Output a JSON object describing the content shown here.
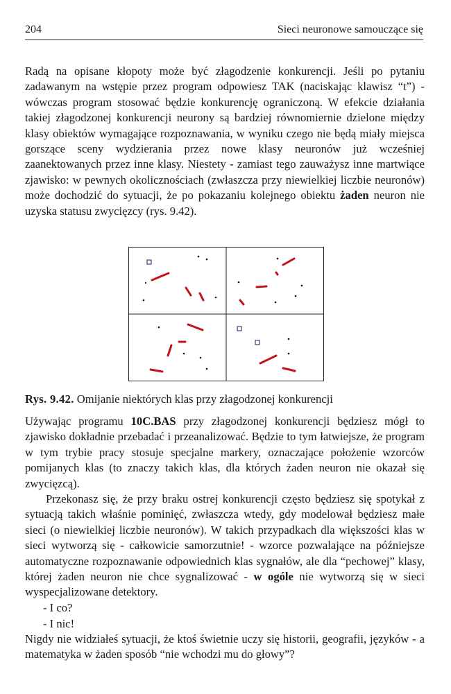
{
  "header": {
    "page_number": "204",
    "running_title": "Sieci neuronowe samouczące się"
  },
  "paragraphs": {
    "p1": "Radą na opisane kłopoty może być złagodzenie konkurencji. Jeśli po pytaniu zadawanym na wstępie przez program odpowiesz TAK (naciskając klawisz “t”) - wówczas program stosować będzie konkurencję ograniczoną. W efekcie działania takiej złagodzonej konkurencji neurony są bardziej równomiernie dzielone między klasy obiektów wymagające rozpoznawania, w wyniku czego nie będą miały miejsca gorszące sceny wydzierania przez nowe klasy neuronów już wcześniej zaanektowanych przez inne klasy. Niestety - zamiast tego zauważysz inne martwiące zjawisko: w pewnych okolicznościach (zwłaszcza przy niewielkiej liczbie neuronów) może dochodzić do sytuacji, że po pokazaniu kolejnego obiektu",
    "p1_bold": "żaden",
    "p1_end": "neuron nie uzyska statusu zwycięzcy (rys. 9.42).",
    "p2_start": "Używając programu",
    "p2_bold": "10C.BAS",
    "p2_end": "przy złagodzonej konkurencji będziesz mógł to zjawisko dokładnie przebadać i przeanalizować. Będzie to tym łatwiejsze, że program w tym trybie pracy stosuje specjalne markery, oznaczające położenie wzorców pomijanych klas (to znaczy takich klas, dla których żaden neuron nie okazał się zwycięzcą).",
    "p3_start": "Przekonasz się, że przy braku ostrej konkurencji często będziesz się spotykał z sytuacją takich właśnie pominięć, zwłaszcza wtedy, gdy modelował będziesz małe sieci (o niewielkiej liczbie neuronów). W takich przypadkach dla większości klas w sieci wytworzą się - całkowicie samorzutnie! - wzorce pozwalające na późniejsze automatyczne rozpoznawanie odpowiednich klas sygnałów, ale dla “pechowej” klasy, której żaden neuron nie chce sygnalizować -",
    "p3_bold": "w ogóle",
    "p3_end": "nie wytworzą się w sieci wyspecjalizowane detektory.",
    "dialog1": "- I co?",
    "dialog2": "- I nic!",
    "p4": "Nigdy nie widziałeś sytuacji, że ktoś świetnie uczy się historii, geografii, języków - a matematyka w żaden sposób “nie wchodzi mu do głowy”?"
  },
  "figure": {
    "caption_label": "Rys. 9.42.",
    "caption_text": "Omijanie niektórych klas przy złagodzonej konkurencji",
    "colors": {
      "segment": "#c0141a",
      "marker": "#2d2d6a",
      "dot": "#111111",
      "frame": "#222222"
    }
  }
}
